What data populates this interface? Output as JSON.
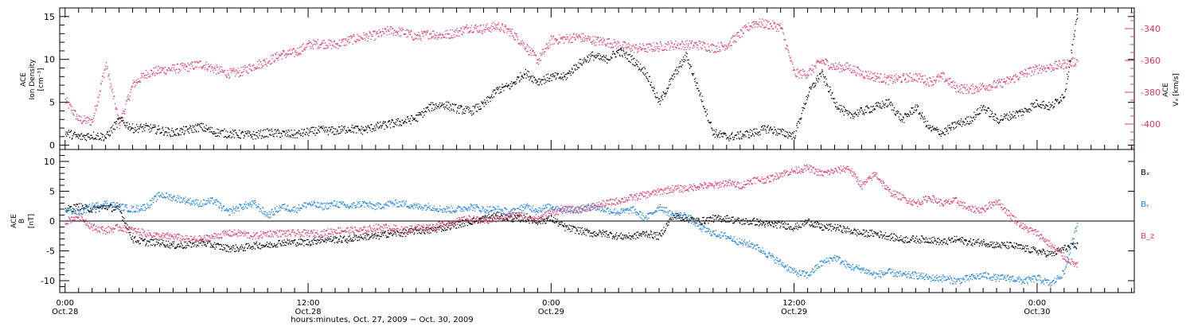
{
  "colors": {
    "axis": "#000000",
    "density": "#000000",
    "vx": "#e0356a",
    "bx": "#000000",
    "by": "#1a80e0",
    "bz": "#e0356a"
  },
  "chart_data": [
    {
      "type": "scatter",
      "panel": "top",
      "ylabel_lines": [
        "ACE",
        "Ion Density",
        "[cm⁻³]"
      ],
      "ylim": [
        -0.5,
        16
      ],
      "yticks": [
        0,
        5,
        10,
        15
      ],
      "y2label_lines": [
        "ACE",
        "Vₓ [km/s]"
      ],
      "y2lim": [
        -416,
        -327
      ],
      "y2ticks": [
        -400,
        -380,
        -360,
        -340
      ],
      "x_range_hours": [
        -0.4,
        79.2
      ],
      "series": [
        {
          "key": "density",
          "axis": "left",
          "x": [
            0,
            1,
            2,
            3,
            4,
            5,
            6,
            7,
            8,
            9,
            10,
            11,
            12,
            13,
            14,
            15,
            16,
            17,
            18,
            19,
            20,
            21,
            22,
            23,
            24,
            25,
            26,
            27,
            28,
            29,
            30,
            31,
            32,
            33,
            34,
            35,
            36,
            37,
            38,
            39,
            40,
            41,
            42,
            43,
            44,
            45,
            46,
            47,
            48,
            49,
            50,
            51,
            52,
            53,
            54,
            55,
            56,
            57,
            58,
            59,
            60,
            61,
            62,
            63,
            64,
            65,
            66,
            67,
            68,
            69,
            70,
            71,
            72,
            73,
            74,
            75
          ],
          "y": [
            1.5,
            1.0,
            1.2,
            1.0,
            3.0,
            2.0,
            2.1,
            1.8,
            1.5,
            1.8,
            2.2,
            1.6,
            1.4,
            1.3,
            1.2,
            1.5,
            1.4,
            1.3,
            1.6,
            1.8,
            1.7,
            2.0,
            1.8,
            2.2,
            2.5,
            2.8,
            3.2,
            4.5,
            4.8,
            4.3,
            4.0,
            4.8,
            6.5,
            7.0,
            8.5,
            7.5,
            8.0,
            8.0,
            9.5,
            10.5,
            10.0,
            11.0,
            10.0,
            8.5,
            5.0,
            8.0,
            10.5,
            6.0,
            1.5,
            1.0,
            1.2,
            1.5,
            2.0,
            1.5,
            1.2,
            6.0,
            8.5,
            5.0,
            3.5,
            4.0,
            4.5,
            5.0,
            3.0,
            4.5,
            2.0,
            1.5,
            2.5,
            3.0,
            4.5,
            3.0,
            3.5,
            4.0,
            5.0,
            4.5,
            6.0,
            15.5
          ]
        },
        {
          "key": "vx",
          "axis": "right",
          "x": [
            0,
            1,
            2,
            3,
            4,
            5,
            6,
            7,
            8,
            9,
            10,
            11,
            12,
            13,
            14,
            15,
            16,
            17,
            18,
            19,
            20,
            21,
            22,
            23,
            24,
            25,
            26,
            27,
            28,
            29,
            30,
            31,
            32,
            33,
            34,
            35,
            36,
            37,
            38,
            39,
            40,
            41,
            42,
            43,
            44,
            45,
            46,
            47,
            48,
            49,
            50,
            51,
            52,
            53,
            54,
            55,
            56,
            57,
            58,
            59,
            60,
            61,
            62,
            63,
            64,
            65,
            66,
            67,
            68,
            69,
            70,
            71,
            72,
            73,
            74,
            75
          ],
          "y": [
            -385,
            -397,
            -398,
            -362,
            -400,
            -375,
            -368,
            -366,
            -365,
            -364,
            -362,
            -365,
            -368,
            -367,
            -363,
            -360,
            -356,
            -355,
            -350,
            -349,
            -350,
            -347,
            -345,
            -344,
            -341,
            -342,
            -345,
            -343,
            -344,
            -342,
            -339,
            -340,
            -338,
            -342,
            -350,
            -360,
            -347,
            -346,
            -345,
            -347,
            -348,
            -350,
            -352,
            -352,
            -351,
            -350,
            -350,
            -350,
            -352,
            -350,
            -343,
            -336,
            -337,
            -339,
            -368,
            -368,
            -360,
            -364,
            -364,
            -368,
            -370,
            -372,
            -371,
            -370,
            -373,
            -370,
            -377,
            -378,
            -376,
            -375,
            -372,
            -368,
            -365,
            -364,
            -362,
            -360
          ]
        }
      ]
    },
    {
      "type": "scatter",
      "panel": "bottom",
      "ylabel_lines": [
        "ACE",
        "B",
        "[nT]"
      ],
      "ylim": [
        -12,
        12
      ],
      "yticks": [
        -10,
        -5,
        0,
        5,
        10
      ],
      "zero_line": true,
      "x_range_hours": [
        -0.4,
        79.2
      ],
      "x_ticks": [
        {
          "hours": 0,
          "time": "0:00",
          "date": "Oct.28"
        },
        {
          "hours": 18,
          "time": "12:00",
          "date": "Oct.28"
        },
        {
          "hours": 36,
          "time": "0:00",
          "date": "Oct.29"
        },
        {
          "hours": 54,
          "time": "12:00",
          "date": "Oct.29"
        },
        {
          "hours": 72,
          "time": "0:00",
          "date": "Oct.30"
        }
      ],
      "xlabel": "hours:minutes, Oct. 27, 2009 − Oct. 30, 2009",
      "series": [
        {
          "key": "bx",
          "name": "Bₓ",
          "x": [
            0,
            1,
            2,
            3,
            4,
            5,
            6,
            7,
            8,
            9,
            10,
            11,
            12,
            13,
            14,
            15,
            16,
            17,
            18,
            19,
            20,
            21,
            22,
            23,
            24,
            25,
            26,
            27,
            28,
            29,
            30,
            31,
            32,
            33,
            34,
            35,
            36,
            37,
            38,
            39,
            40,
            41,
            42,
            43,
            44,
            45,
            46,
            47,
            48,
            49,
            50,
            51,
            52,
            53,
            54,
            55,
            56,
            57,
            58,
            59,
            60,
            61,
            62,
            63,
            64,
            65,
            66,
            67,
            68,
            69,
            70,
            71,
            72,
            73,
            74,
            75
          ],
          "y": [
            2.0,
            2.5,
            2.0,
            2.5,
            2.0,
            -3.0,
            -3.5,
            -3.5,
            -4.0,
            -4.0,
            -3.5,
            -4.0,
            -4.5,
            -4.5,
            -4.0,
            -4.0,
            -3.5,
            -3.5,
            -3.5,
            -3.0,
            -3.0,
            -3.0,
            -2.5,
            -2.5,
            -2.0,
            -2.0,
            -1.5,
            -1.5,
            -1.0,
            -0.5,
            0.0,
            0.5,
            1.0,
            0.5,
            0.5,
            0.0,
            0.5,
            -1.0,
            -1.5,
            -2.0,
            -2.0,
            -2.5,
            -2.5,
            -2.0,
            -2.5,
            1.0,
            0.5,
            0.0,
            0.5,
            0.5,
            0.0,
            0.0,
            -0.5,
            -0.5,
            -1.0,
            0.0,
            -1.0,
            -1.0,
            -1.5,
            -2.0,
            -2.0,
            -2.5,
            -3.0,
            -3.0,
            -3.0,
            -3.5,
            -3.0,
            -3.5,
            -3.5,
            -4.0,
            -4.0,
            -4.5,
            -5.0,
            -5.5,
            -4.5,
            -4.0
          ]
        },
        {
          "key": "by",
          "name": "Bᵧ",
          "x": [
            0,
            1,
            2,
            3,
            4,
            5,
            6,
            7,
            8,
            9,
            10,
            11,
            12,
            13,
            14,
            15,
            16,
            17,
            18,
            19,
            20,
            21,
            22,
            23,
            24,
            25,
            26,
            27,
            28,
            29,
            30,
            31,
            32,
            33,
            34,
            35,
            36,
            37,
            38,
            39,
            40,
            41,
            42,
            43,
            44,
            45,
            46,
            47,
            48,
            49,
            50,
            51,
            52,
            53,
            54,
            55,
            56,
            57,
            58,
            59,
            60,
            61,
            62,
            63,
            64,
            65,
            66,
            67,
            68,
            69,
            70,
            71,
            72,
            73,
            74,
            75
          ],
          "y": [
            2.0,
            1.5,
            2.5,
            3.0,
            2.5,
            2.0,
            2.5,
            4.5,
            4.0,
            3.5,
            3.0,
            3.5,
            1.5,
            2.5,
            3.0,
            1.0,
            2.5,
            2.0,
            3.0,
            2.5,
            3.0,
            2.5,
            3.0,
            2.5,
            3.0,
            3.0,
            2.5,
            2.5,
            2.0,
            2.0,
            2.5,
            2.0,
            2.0,
            1.5,
            2.5,
            2.0,
            2.5,
            2.0,
            2.0,
            2.5,
            2.0,
            1.5,
            2.0,
            0.5,
            2.5,
            1.0,
            1.0,
            -1.0,
            -2.0,
            -2.5,
            -3.5,
            -4.0,
            -5.5,
            -7.0,
            -8.5,
            -9.0,
            -7.0,
            -6.0,
            -7.5,
            -8.0,
            -9.0,
            -8.5,
            -9.0,
            -9.0,
            -9.5,
            -9.5,
            -10.0,
            -9.5,
            -9.0,
            -9.5,
            -9.5,
            -10.0,
            -9.5,
            -10.5,
            -8.5,
            0.0
          ]
        },
        {
          "key": "bz",
          "name": "B_z",
          "x": [
            0,
            1,
            2,
            3,
            4,
            5,
            6,
            7,
            8,
            9,
            10,
            11,
            12,
            13,
            14,
            15,
            16,
            17,
            18,
            19,
            20,
            21,
            22,
            23,
            24,
            25,
            26,
            27,
            28,
            29,
            30,
            31,
            32,
            33,
            34,
            35,
            36,
            37,
            38,
            39,
            40,
            41,
            42,
            43,
            44,
            45,
            46,
            47,
            48,
            49,
            50,
            51,
            52,
            53,
            54,
            55,
            56,
            57,
            58,
            59,
            60,
            61,
            62,
            63,
            64,
            65,
            66,
            67,
            68,
            69,
            70,
            71,
            72,
            73,
            74,
            75
          ],
          "y": [
            0.0,
            1.0,
            -1.0,
            -1.5,
            -1.0,
            -1.5,
            -2.0,
            -2.5,
            -2.5,
            -3.0,
            -3.0,
            -2.5,
            -2.0,
            -2.0,
            -2.5,
            -2.0,
            -2.0,
            -2.0,
            -2.0,
            -2.0,
            -1.5,
            -1.5,
            -1.5,
            -1.0,
            -1.0,
            -1.5,
            -1.0,
            -1.0,
            -0.5,
            0.0,
            0.5,
            0.0,
            0.5,
            1.0,
            1.0,
            0.5,
            1.5,
            2.0,
            2.0,
            2.5,
            3.0,
            3.5,
            4.0,
            4.5,
            5.0,
            5.5,
            5.5,
            6.0,
            6.0,
            6.5,
            6.0,
            7.0,
            7.0,
            8.0,
            8.5,
            9.0,
            8.0,
            8.5,
            9.0,
            6.0,
            8.0,
            5.0,
            4.0,
            3.0,
            4.0,
            3.0,
            3.5,
            2.0,
            2.0,
            3.5,
            1.0,
            -1.0,
            -2.0,
            -4.0,
            -6.0,
            -7.5
          ]
        }
      ]
    }
  ]
}
